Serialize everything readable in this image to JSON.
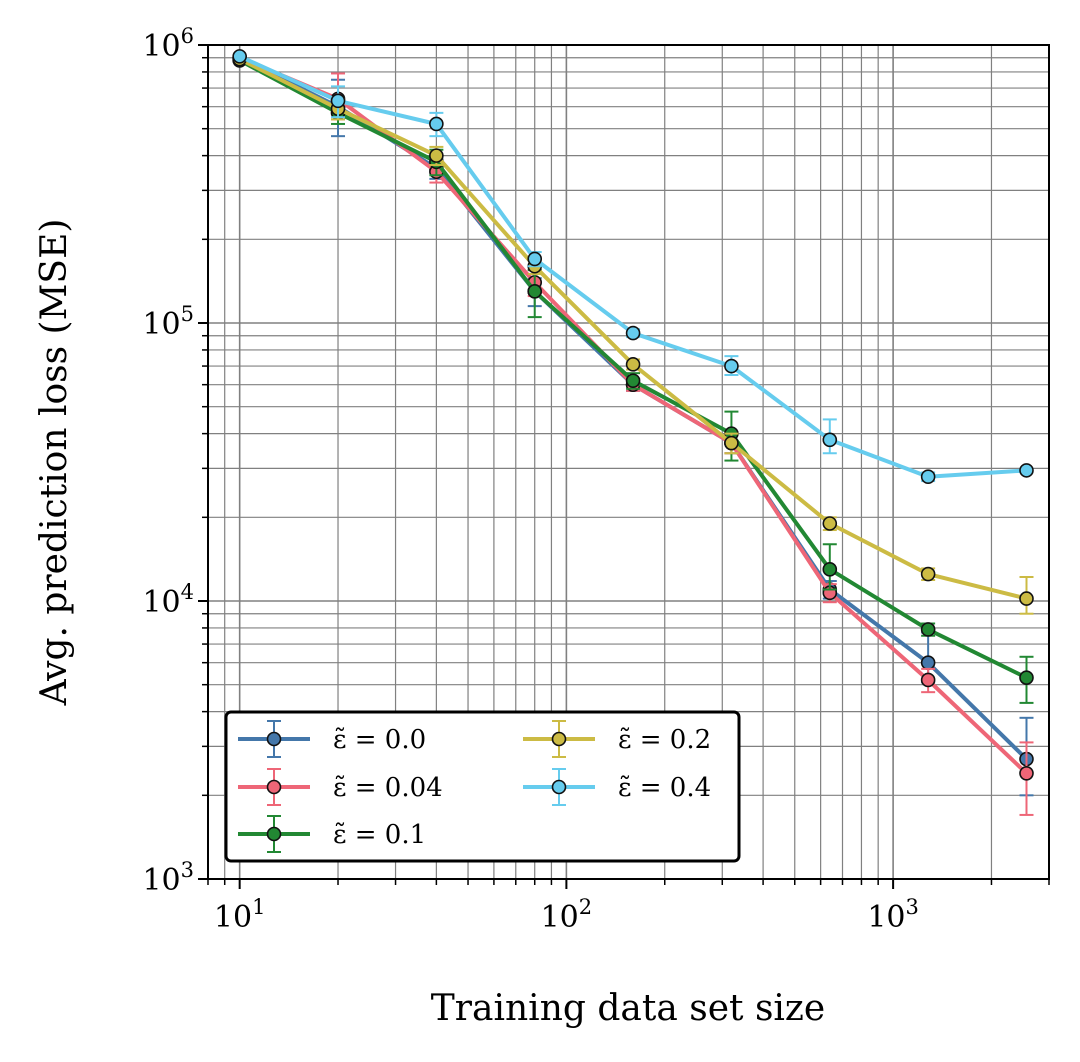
{
  "chart_data": {
    "type": "line",
    "title": "",
    "xlabel": "Training data set size",
    "ylabel": "Avg. prediction loss (MSE)",
    "xscale": "log",
    "yscale": "log",
    "xlim": [
      8,
      3000
    ],
    "ylim": [
      1000,
      1000000
    ],
    "x_ticks": [
      {
        "value": 10,
        "base": "10",
        "exp": "1"
      },
      {
        "value": 100,
        "base": "10",
        "exp": "2"
      },
      {
        "value": 1000,
        "base": "10",
        "exp": "3"
      }
    ],
    "y_ticks": [
      {
        "value": 1000,
        "base": "10",
        "exp": "3"
      },
      {
        "value": 10000,
        "base": "10",
        "exp": "4"
      },
      {
        "value": 100000,
        "base": "10",
        "exp": "5"
      },
      {
        "value": 1000000,
        "base": "10",
        "exp": "6"
      }
    ],
    "grid": "major and minor",
    "legend_position": "lower-left",
    "x": [
      10,
      20,
      40,
      80,
      160,
      320,
      640,
      1280,
      2560
    ],
    "series": [
      {
        "name": "ε̃ = 0.0",
        "color": "#4477aa",
        "values": [
          900000,
          600000,
          360000,
          130000,
          60000,
          37000,
          11000,
          6000,
          2700
        ],
        "err_low": [
          0,
          130000,
          30000,
          15000,
          3000,
          3000,
          800,
          900,
          700
        ],
        "err_high": [
          0,
          150000,
          30000,
          15000,
          3000,
          3000,
          800,
          1700,
          1100
        ]
      },
      {
        "name": "ε̃ = 0.04",
        "color": "#ee6677",
        "values": [
          900000,
          640000,
          350000,
          140000,
          60000,
          37000,
          10700,
          5200,
          2400
        ],
        "err_low": [
          0,
          100000,
          30000,
          15000,
          3000,
          3000,
          800,
          500,
          700
        ],
        "err_high": [
          0,
          150000,
          30000,
          15000,
          3000,
          3000,
          800,
          500,
          700
        ]
      },
      {
        "name": "ε̃ = 0.1",
        "color": "#228833",
        "values": [
          880000,
          570000,
          380000,
          130000,
          62000,
          40000,
          13000,
          7900,
          5300
        ],
        "err_low": [
          0,
          50000,
          40000,
          25000,
          4000,
          8000,
          2000,
          400,
          1000
        ],
        "err_high": [
          0,
          50000,
          40000,
          25000,
          4000,
          8000,
          3000,
          400,
          1000
        ]
      },
      {
        "name": "ε̃ = 0.2",
        "color": "#ccbb44",
        "values": [
          890000,
          590000,
          400000,
          160000,
          71000,
          37000,
          19000,
          12500,
          10200
        ],
        "err_low": [
          0,
          50000,
          30000,
          10000,
          3000,
          3000,
          1000,
          600,
          1200
        ],
        "err_high": [
          0,
          50000,
          30000,
          10000,
          3000,
          3000,
          1000,
          600,
          2000
        ]
      },
      {
        "name": "ε̃ = 0.4",
        "color": "#66ccee",
        "values": [
          910000,
          630000,
          520000,
          170000,
          92000,
          70000,
          38000,
          28000,
          29500
        ],
        "err_low": [
          0,
          80000,
          50000,
          10000,
          3000,
          5000,
          4000,
          1000,
          500
        ],
        "err_high": [
          0,
          80000,
          50000,
          10000,
          3000,
          6000,
          7000,
          1000,
          500
        ]
      }
    ]
  }
}
